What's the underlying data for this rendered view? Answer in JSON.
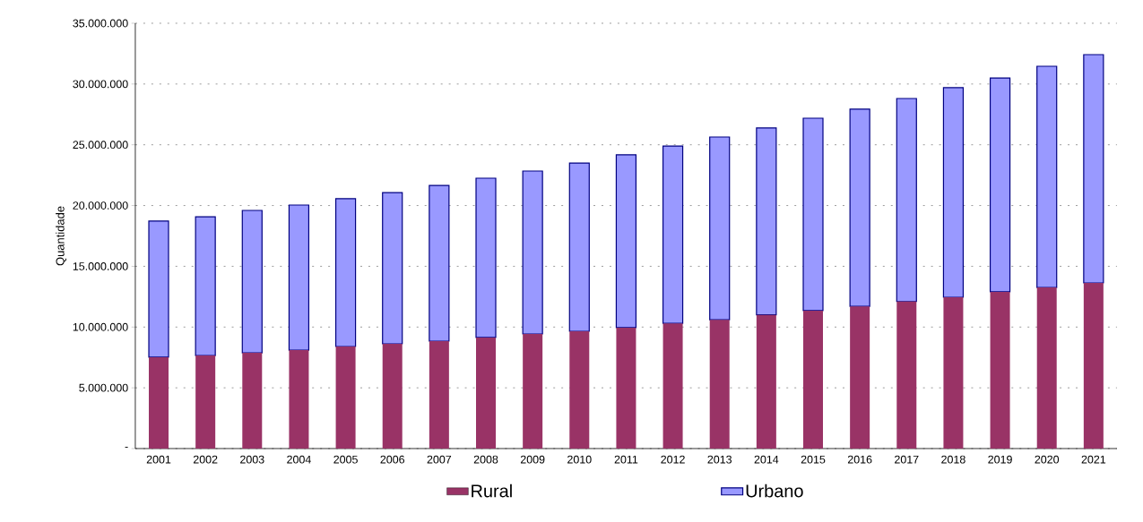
{
  "chart_data": {
    "type": "bar",
    "stacked": true,
    "ylabel": "Quantidade",
    "categories": [
      "2001",
      "2002",
      "2003",
      "2004",
      "2005",
      "2006",
      "2007",
      "2008",
      "2009",
      "2010",
      "2011",
      "2012",
      "2013",
      "2014",
      "2015",
      "2016",
      "2017",
      "2018",
      "2019",
      "2020",
      "2021"
    ],
    "series": [
      {
        "name": "Rural",
        "color": "#993366",
        "values": [
          7520000,
          7660000,
          7880000,
          8100000,
          8400000,
          8620000,
          8840000,
          9140000,
          9430000,
          9650000,
          9950000,
          10300000,
          10600000,
          11000000,
          11350000,
          11700000,
          12100000,
          12450000,
          12900000,
          13260000,
          13630000
        ]
      },
      {
        "name": "Urbano",
        "color": "#9999ff",
        "values": [
          11200000,
          11420000,
          11720000,
          11940000,
          12160000,
          12450000,
          12820000,
          13110000,
          13410000,
          13850000,
          14220000,
          14600000,
          15040000,
          15380000,
          15840000,
          16230000,
          16710000,
          17250000,
          17600000,
          18200000,
          18790000
        ]
      }
    ],
    "ylim": [
      0,
      35000000
    ],
    "yticks": [
      {
        "value": 0,
        "label": "-"
      },
      {
        "value": 5000000,
        "label": "5.000.000"
      },
      {
        "value": 10000000,
        "label": "10.000.000"
      },
      {
        "value": 15000000,
        "label": "15.000.000"
      },
      {
        "value": 20000000,
        "label": "20.000.000"
      },
      {
        "value": 25000000,
        "label": "25.000.000"
      },
      {
        "value": 30000000,
        "label": "30.000.000"
      },
      {
        "value": 35000000,
        "label": "35.000.000"
      }
    ],
    "grid": "y",
    "legend": "bottom"
  }
}
